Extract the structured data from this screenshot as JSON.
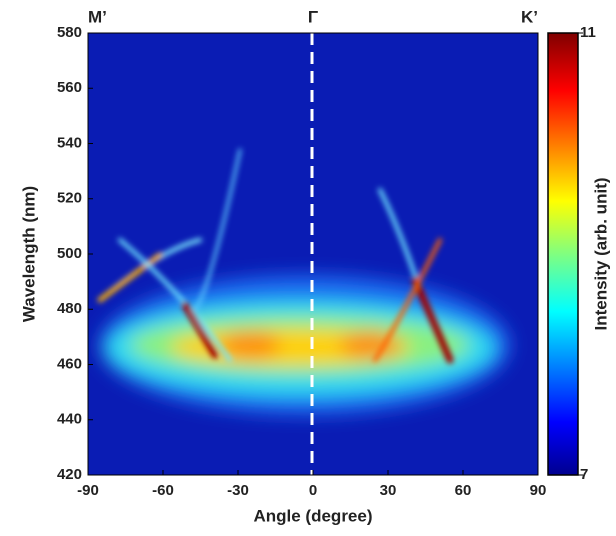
{
  "chart_data": {
    "type": "heatmap",
    "xlabel": "Angle (degree)",
    "ylabel": "Wavelength (nm)",
    "xlim": [
      -90,
      90
    ],
    "xticks": [
      -90,
      -60,
      -30,
      0,
      30,
      60,
      90
    ],
    "ylim": [
      420,
      580
    ],
    "yticks": [
      420,
      440,
      460,
      480,
      500,
      520,
      540,
      560,
      580
    ],
    "colorbar": {
      "label": "Intensity (arb. unit)",
      "lim": [
        7,
        11
      ],
      "ticks": [
        7,
        11
      ]
    },
    "annotations": [
      {
        "text": "M’",
        "x": -90
      },
      {
        "text": "Γ",
        "x": 0
      },
      {
        "text": "K’",
        "x": 90
      }
    ]
  }
}
